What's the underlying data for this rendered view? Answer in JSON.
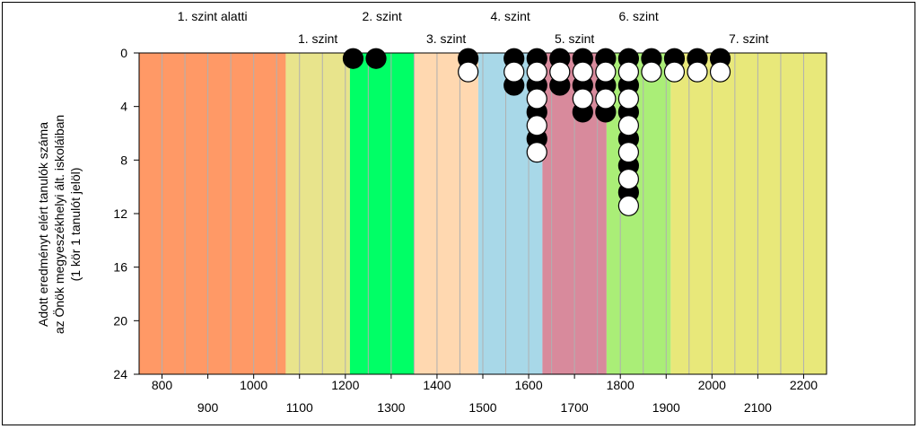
{
  "chart_data": {
    "type": "scatter",
    "ylabel_lines": [
      "Adott eredményt elért tanulók száma",
      "az Önök megyeszékhelyi ált. iskoláiban",
      "(1 kör 1 tanulót jelöl)"
    ],
    "xlim": [
      750,
      2250
    ],
    "ylim": [
      0,
      24
    ],
    "y_ticks": [
      0,
      4,
      8,
      12,
      16,
      20,
      24
    ],
    "x_ticks_row1": [
      800,
      1000,
      1200,
      1400,
      1600,
      1800,
      2000,
      2200
    ],
    "x_ticks_row2": [
      900,
      1100,
      1300,
      1500,
      1700,
      1900,
      2100
    ],
    "grid": "vertical every 50",
    "bands": [
      {
        "from": 750,
        "to": 1070,
        "color": "#ff9966",
        "label": "1. szint alatti",
        "label_row": "upper"
      },
      {
        "from": 1070,
        "to": 1210,
        "color": "#e8e48c",
        "label": "1. szint",
        "label_row": "lower"
      },
      {
        "from": 1210,
        "to": 1350,
        "color": "#00ff66",
        "label": "2. szint",
        "label_row": "upper"
      },
      {
        "from": 1350,
        "to": 1490,
        "color": "#ffd8b0",
        "label": "3. szint",
        "label_row": "lower"
      },
      {
        "from": 1490,
        "to": 1630,
        "color": "#a8d8e8",
        "label": "4. szint",
        "label_row": "upper"
      },
      {
        "from": 1630,
        "to": 1770,
        "color": "#d88a9c",
        "label": "5. szint",
        "label_row": "lower"
      },
      {
        "from": 1770,
        "to": 1910,
        "color": "#aaee77",
        "label": "6. szint",
        "label_row": "upper"
      },
      {
        "from": 1910,
        "to": 2250,
        "color": "#e8e87a",
        "label": "7. szint",
        "label_row": "lower"
      }
    ],
    "series": [
      {
        "values": [
          {
            "x": 1217,
            "y": 1
          },
          {
            "x": 1267,
            "y": 1
          },
          {
            "x": 1468,
            "y": 1
          },
          {
            "x": 1568,
            "y": 1
          },
          {
            "x": 1568,
            "y": 3
          },
          {
            "x": 1618,
            "y": 1
          },
          {
            "x": 1618,
            "y": 3
          },
          {
            "x": 1618,
            "y": 5
          },
          {
            "x": 1618,
            "y": 7
          },
          {
            "x": 1668,
            "y": 1
          },
          {
            "x": 1668,
            "y": 3
          },
          {
            "x": 1718,
            "y": 1
          },
          {
            "x": 1718,
            "y": 3
          },
          {
            "x": 1718,
            "y": 5
          },
          {
            "x": 1768,
            "y": 1
          },
          {
            "x": 1768,
            "y": 3
          },
          {
            "x": 1768,
            "y": 5
          },
          {
            "x": 1818,
            "y": 1
          },
          {
            "x": 1818,
            "y": 3
          },
          {
            "x": 1818,
            "y": 5
          },
          {
            "x": 1818,
            "y": 7
          },
          {
            "x": 1818,
            "y": 9
          },
          {
            "x": 1818,
            "y": 11
          },
          {
            "x": 1868,
            "y": 1
          },
          {
            "x": 1918,
            "y": 1
          },
          {
            "x": 1968,
            "y": 1
          },
          {
            "x": 2018,
            "y": 1
          }
        ],
        "marker": "black-circle"
      },
      {
        "values": [
          {
            "x": 1468,
            "y": 2
          },
          {
            "x": 1568,
            "y": 2
          },
          {
            "x": 1618,
            "y": 2
          },
          {
            "x": 1618,
            "y": 4
          },
          {
            "x": 1618,
            "y": 6
          },
          {
            "x": 1618,
            "y": 8
          },
          {
            "x": 1668,
            "y": 2
          },
          {
            "x": 1718,
            "y": 2
          },
          {
            "x": 1718,
            "y": 4
          },
          {
            "x": 1768,
            "y": 2
          },
          {
            "x": 1768,
            "y": 4
          },
          {
            "x": 1818,
            "y": 2
          },
          {
            "x": 1818,
            "y": 4
          },
          {
            "x": 1818,
            "y": 6
          },
          {
            "x": 1818,
            "y": 8
          },
          {
            "x": 1818,
            "y": 10
          },
          {
            "x": 1818,
            "y": 12
          },
          {
            "x": 1868,
            "y": 2
          },
          {
            "x": 1918,
            "y": 2
          },
          {
            "x": 1968,
            "y": 2
          },
          {
            "x": 2018,
            "y": 2
          }
        ],
        "marker": "white-circle"
      }
    ]
  }
}
